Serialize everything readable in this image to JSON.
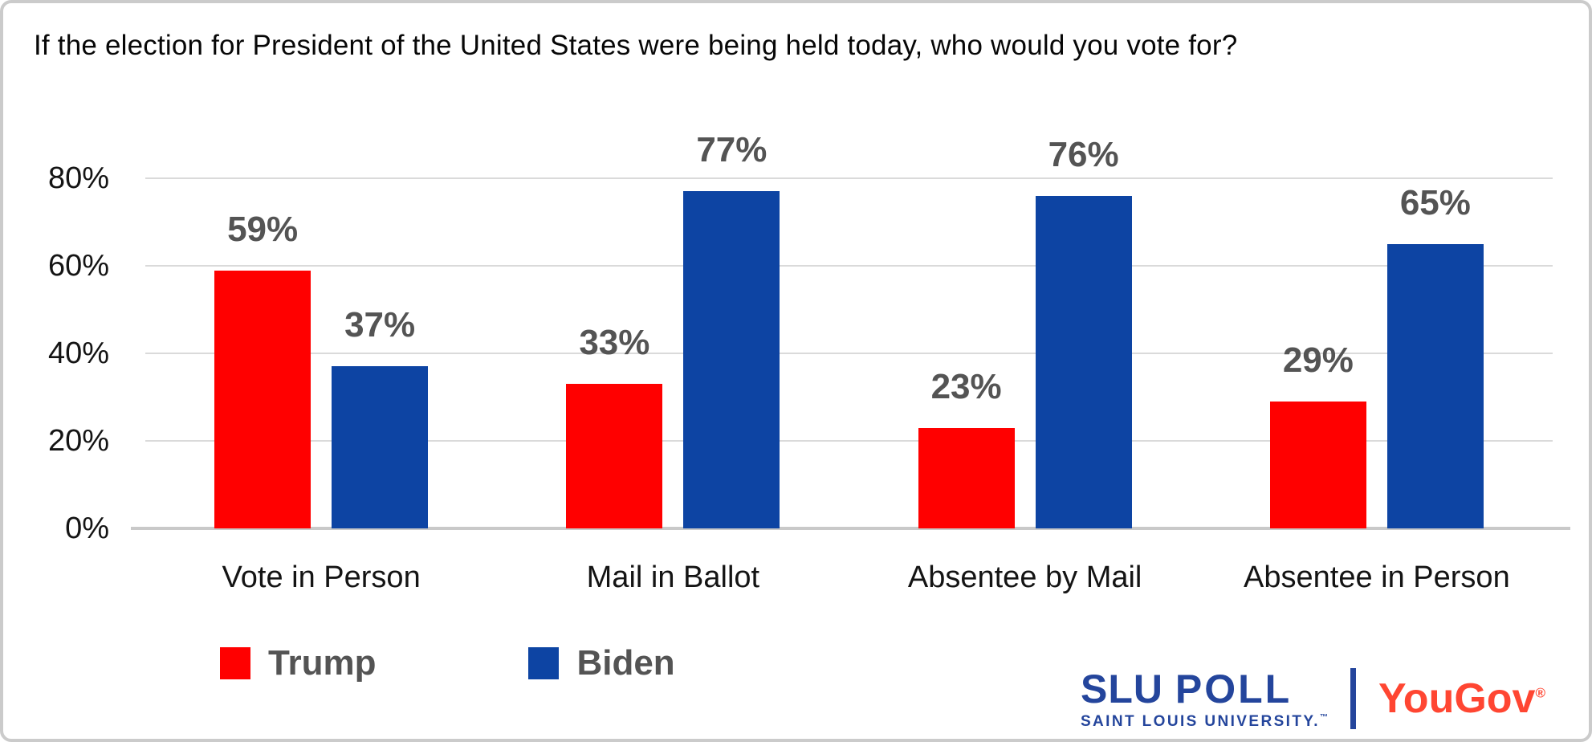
{
  "chart_data": {
    "type": "bar",
    "title": "If the election for President of the United States were being held today, who would you vote for?",
    "categories": [
      "Vote in Person",
      "Mail in Ballot",
      "Absentee by Mail",
      "Absentee in Person"
    ],
    "series": [
      {
        "name": "Trump",
        "color": "#FF0000",
        "values": [
          59,
          33,
          23,
          29
        ]
      },
      {
        "name": "Biden",
        "color": "#0D44A3",
        "values": [
          37,
          77,
          76,
          65
        ]
      }
    ],
    "y_ticks": [
      0,
      20,
      40,
      60,
      80
    ],
    "y_tick_suffix": "%",
    "data_label_suffix": "%",
    "ylim": [
      0,
      87
    ],
    "grid": true,
    "legend_position": "bottom-left",
    "data_label_color": "#545454",
    "gridline_color": "#dadada"
  },
  "footer": {
    "slu_logo": {
      "slu": "SLU",
      "poll": "POLL",
      "university": "SAINT LOUIS UNIVERSITY.",
      "tm": "™",
      "color": "#24459C"
    },
    "yougov_logo": {
      "text": "YouGov",
      "reg": "®",
      "color": "#FF4632"
    }
  }
}
